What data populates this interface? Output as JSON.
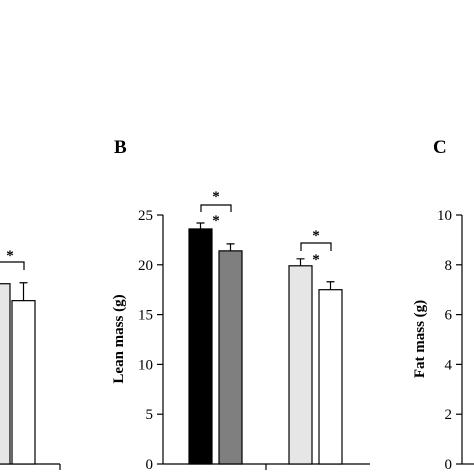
{
  "chart_data": [
    {
      "panel": "",
      "type": "bar",
      "xlabel": "",
      "ylabel": "",
      "series": [
        {
          "name": "",
          "values": [
            18.1,
            16.4
          ],
          "errors": [
            0.0,
            1.8
          ],
          "colors": [
            "#e6e6e6",
            "#ffffff"
          ]
        }
      ],
      "annotations": [
        {
          "text": "*",
          "type": "bracket"
        }
      ]
    },
    {
      "panel": "B",
      "type": "bar",
      "xlabel": "",
      "ylabel": "Lean mass (g)",
      "ylim": [
        0,
        25
      ],
      "yticks": [
        "0",
        "5",
        "10",
        "15",
        "20",
        "25"
      ],
      "groups": [
        {
          "values": [
            23.6,
            21.4
          ],
          "errors": [
            0.6,
            0.7
          ],
          "colors": [
            "#000000",
            "#7f7f7f"
          ],
          "stars": [
            "*",
            "*"
          ]
        },
        {
          "values": [
            19.9,
            17.5
          ],
          "errors": [
            0.7,
            0.8
          ],
          "colors": [
            "#e6e6e6",
            "#ffffff"
          ],
          "stars": [
            "*",
            "*"
          ]
        }
      ]
    },
    {
      "panel": "C",
      "type": "bar",
      "xlabel": "",
      "ylabel": "Fat mass (g)",
      "ylim": [
        0,
        10
      ],
      "yticks": [
        "0",
        "2",
        "4",
        "6",
        "8",
        "10"
      ],
      "groups": []
    }
  ]
}
